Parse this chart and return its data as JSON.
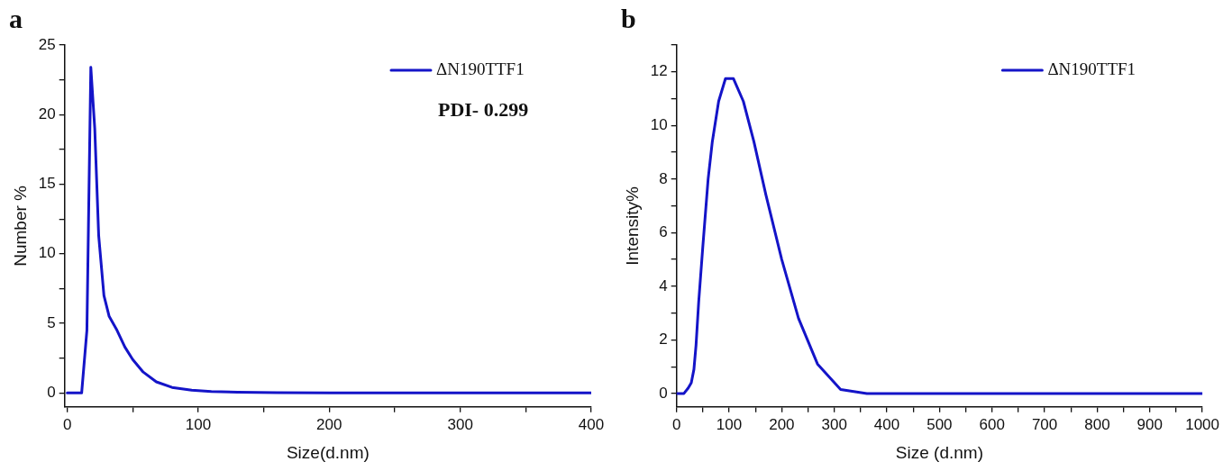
{
  "chart_data": [
    {
      "type": "line",
      "title": "a",
      "xlabel": "Size(d.nm)",
      "ylabel": "Number %",
      "legend": "top right",
      "grid": false,
      "marker": "none",
      "line_style": "solid",
      "x": [
        0,
        11,
        15,
        18,
        21,
        24,
        28,
        32,
        38,
        44,
        50,
        58,
        68,
        80,
        95,
        110,
        130,
        160,
        200,
        400
      ],
      "series": [
        {
          "name": "ΔN190TTF1",
          "color": "#1414c8",
          "values": [
            0,
            0,
            4.5,
            23.4,
            19,
            11.3,
            7,
            5.5,
            4.5,
            3.3,
            2.4,
            1.5,
            0.8,
            0.4,
            0.2,
            0.1,
            0.05,
            0.02,
            0,
            0
          ]
        }
      ],
      "xlim": [
        -2,
        400
      ],
      "xticks": [
        0,
        {
          "value": 50,
          "label": null
        },
        100,
        {
          "value": 150,
          "label": null
        },
        200,
        {
          "value": 250,
          "label": null
        },
        300,
        {
          "value": 350,
          "label": null
        },
        400
      ],
      "ylim": [
        -1,
        25
      ],
      "yticks": [
        0,
        {
          "value": 2.5,
          "label": null
        },
        5,
        {
          "value": 7.5,
          "label": null
        },
        10,
        {
          "value": 12.5,
          "label": null
        },
        15,
        {
          "value": 17.5,
          "label": null
        },
        20,
        {
          "value": 22.5,
          "label": null
        },
        25
      ],
      "annotations": [
        "PDI- 0.299"
      ]
    },
    {
      "type": "line",
      "title": "b",
      "xlabel": "Size (d.nm)",
      "ylabel": "Intensity%",
      "legend": "top right",
      "grid": false,
      "marker": "none",
      "line_style": "solid",
      "x": [
        0,
        14,
        22,
        28,
        33,
        37,
        42,
        50,
        60,
        68,
        80,
        93,
        108,
        127,
        147,
        170,
        200,
        232,
        268,
        312,
        362,
        1000
      ],
      "series": [
        {
          "name": "ΔN190TTF1",
          "color": "#1414c8",
          "values": [
            0,
            0,
            0.2,
            0.4,
            0.9,
            1.8,
            3.4,
            5.5,
            8,
            9.4,
            10.9,
            11.75,
            11.75,
            10.9,
            9.4,
            7.4,
            5,
            2.8,
            1.1,
            0.15,
            0,
            0
          ]
        }
      ],
      "xlim": [
        0,
        1000
      ],
      "xticks": [
        0,
        {
          "value": 50,
          "label": null
        },
        100,
        {
          "value": 150,
          "label": null
        },
        200,
        {
          "value": 250,
          "label": null
        },
        300,
        {
          "value": 350,
          "label": null
        },
        400,
        {
          "value": 450,
          "label": null
        },
        500,
        {
          "value": 550,
          "label": null
        },
        600,
        {
          "value": 650,
          "label": null
        },
        700,
        {
          "value": 750,
          "label": null
        },
        800,
        {
          "value": 850,
          "label": null
        },
        900,
        {
          "value": 950,
          "label": null
        },
        1000
      ],
      "ylim": [
        -0.5,
        13
      ],
      "yticks": [
        0,
        {
          "value": 1,
          "label": null
        },
        2,
        {
          "value": 3,
          "label": null
        },
        4,
        {
          "value": 5,
          "label": null
        },
        6,
        {
          "value": 7,
          "label": null
        },
        8,
        {
          "value": 9,
          "label": null
        },
        10,
        {
          "value": 11,
          "label": null
        },
        12,
        {
          "value": 13,
          "label": null
        }
      ]
    }
  ]
}
